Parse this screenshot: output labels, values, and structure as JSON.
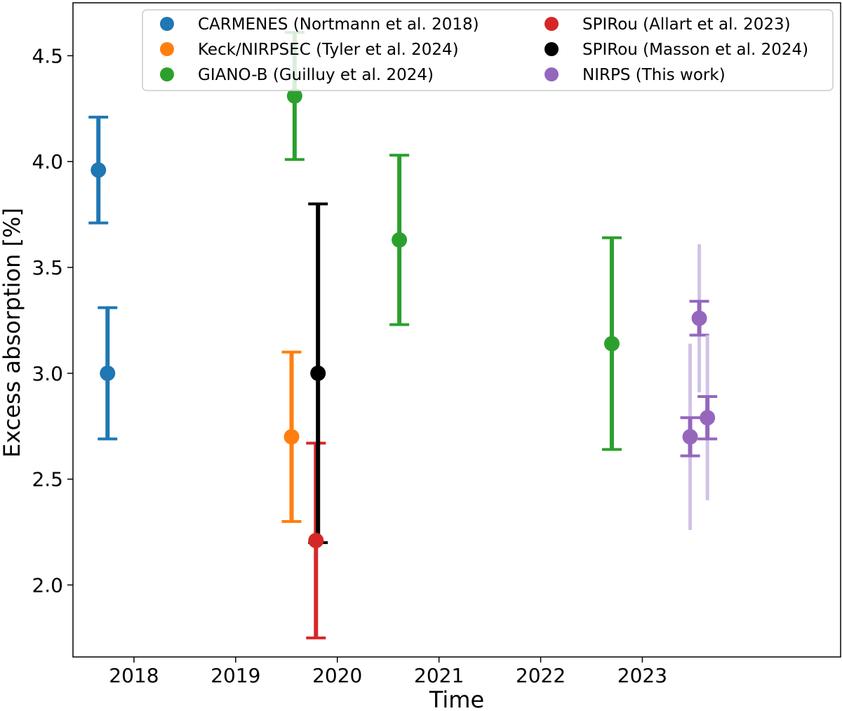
{
  "chart_data": {
    "type": "scatter",
    "title": "",
    "xlabel": "Time",
    "ylabel": "Excess absorption [%]",
    "xlim": [
      2017.4,
      2024.95
    ],
    "ylim": [
      1.66,
      4.75
    ],
    "x_ticks": [
      2018,
      2019,
      2020,
      2021,
      2022,
      2023
    ],
    "x_tick_labels": [
      "2018",
      "2019",
      "2020",
      "2021",
      "2022",
      "2023"
    ],
    "y_ticks": [
      2.0,
      2.5,
      3.0,
      3.5,
      4.0,
      4.5
    ],
    "y_tick_labels": [
      "2.0",
      "2.5",
      "3.0",
      "3.5",
      "4.0",
      "4.5"
    ],
    "grid": false,
    "legend_position": "top",
    "series": [
      {
        "name": "CARMENES (Nortmann et al. 2018)",
        "color": "#1f77b4",
        "points": [
          {
            "x": 2017.65,
            "y": 3.96,
            "lo": 3.71,
            "hi": 4.21
          },
          {
            "x": 2017.74,
            "y": 3.0,
            "lo": 2.69,
            "hi": 3.31
          }
        ]
      },
      {
        "name": "Keck/NIRPSEC (Tyler et al. 2024)",
        "color": "#ff7f0e",
        "points": [
          {
            "x": 2019.55,
            "y": 2.7,
            "lo": 2.3,
            "hi": 3.1
          }
        ]
      },
      {
        "name": "GIANO-B (Guilluy et al. 2024)",
        "color": "#2ca02c",
        "points": [
          {
            "x": 2019.58,
            "y": 4.31,
            "lo": 4.01,
            "hi": 4.61
          },
          {
            "x": 2020.61,
            "y": 3.63,
            "lo": 3.23,
            "hi": 4.03
          },
          {
            "x": 2022.7,
            "y": 3.14,
            "lo": 2.64,
            "hi": 3.64
          }
        ]
      },
      {
        "name": "SPIRou (Allart et al. 2023)",
        "color": "#d62728",
        "points": [
          {
            "x": 2019.79,
            "y": 2.21,
            "lo": 1.75,
            "hi": 2.67
          }
        ]
      },
      {
        "name": "SPIRou (Masson et al. 2024)",
        "color": "#000000",
        "points": [
          {
            "x": 2019.81,
            "y": 3.0,
            "lo": 2.2,
            "hi": 3.8
          }
        ]
      },
      {
        "name": "NIRPS (This work)",
        "color": "#9467bd",
        "light_color": "#d2c2e6",
        "points": [
          {
            "x": 2023.47,
            "y": 2.7,
            "lo": 2.61,
            "hi": 2.79,
            "lo_wide": 2.26,
            "hi_wide": 3.14
          },
          {
            "x": 2023.56,
            "y": 3.26,
            "lo": 3.18,
            "hi": 3.34,
            "lo_wide": 2.91,
            "hi_wide": 3.61
          },
          {
            "x": 2023.64,
            "y": 2.79,
            "lo": 2.69,
            "hi": 2.89,
            "lo_wide": 2.4,
            "hi_wide": 3.18
          }
        ]
      }
    ]
  }
}
